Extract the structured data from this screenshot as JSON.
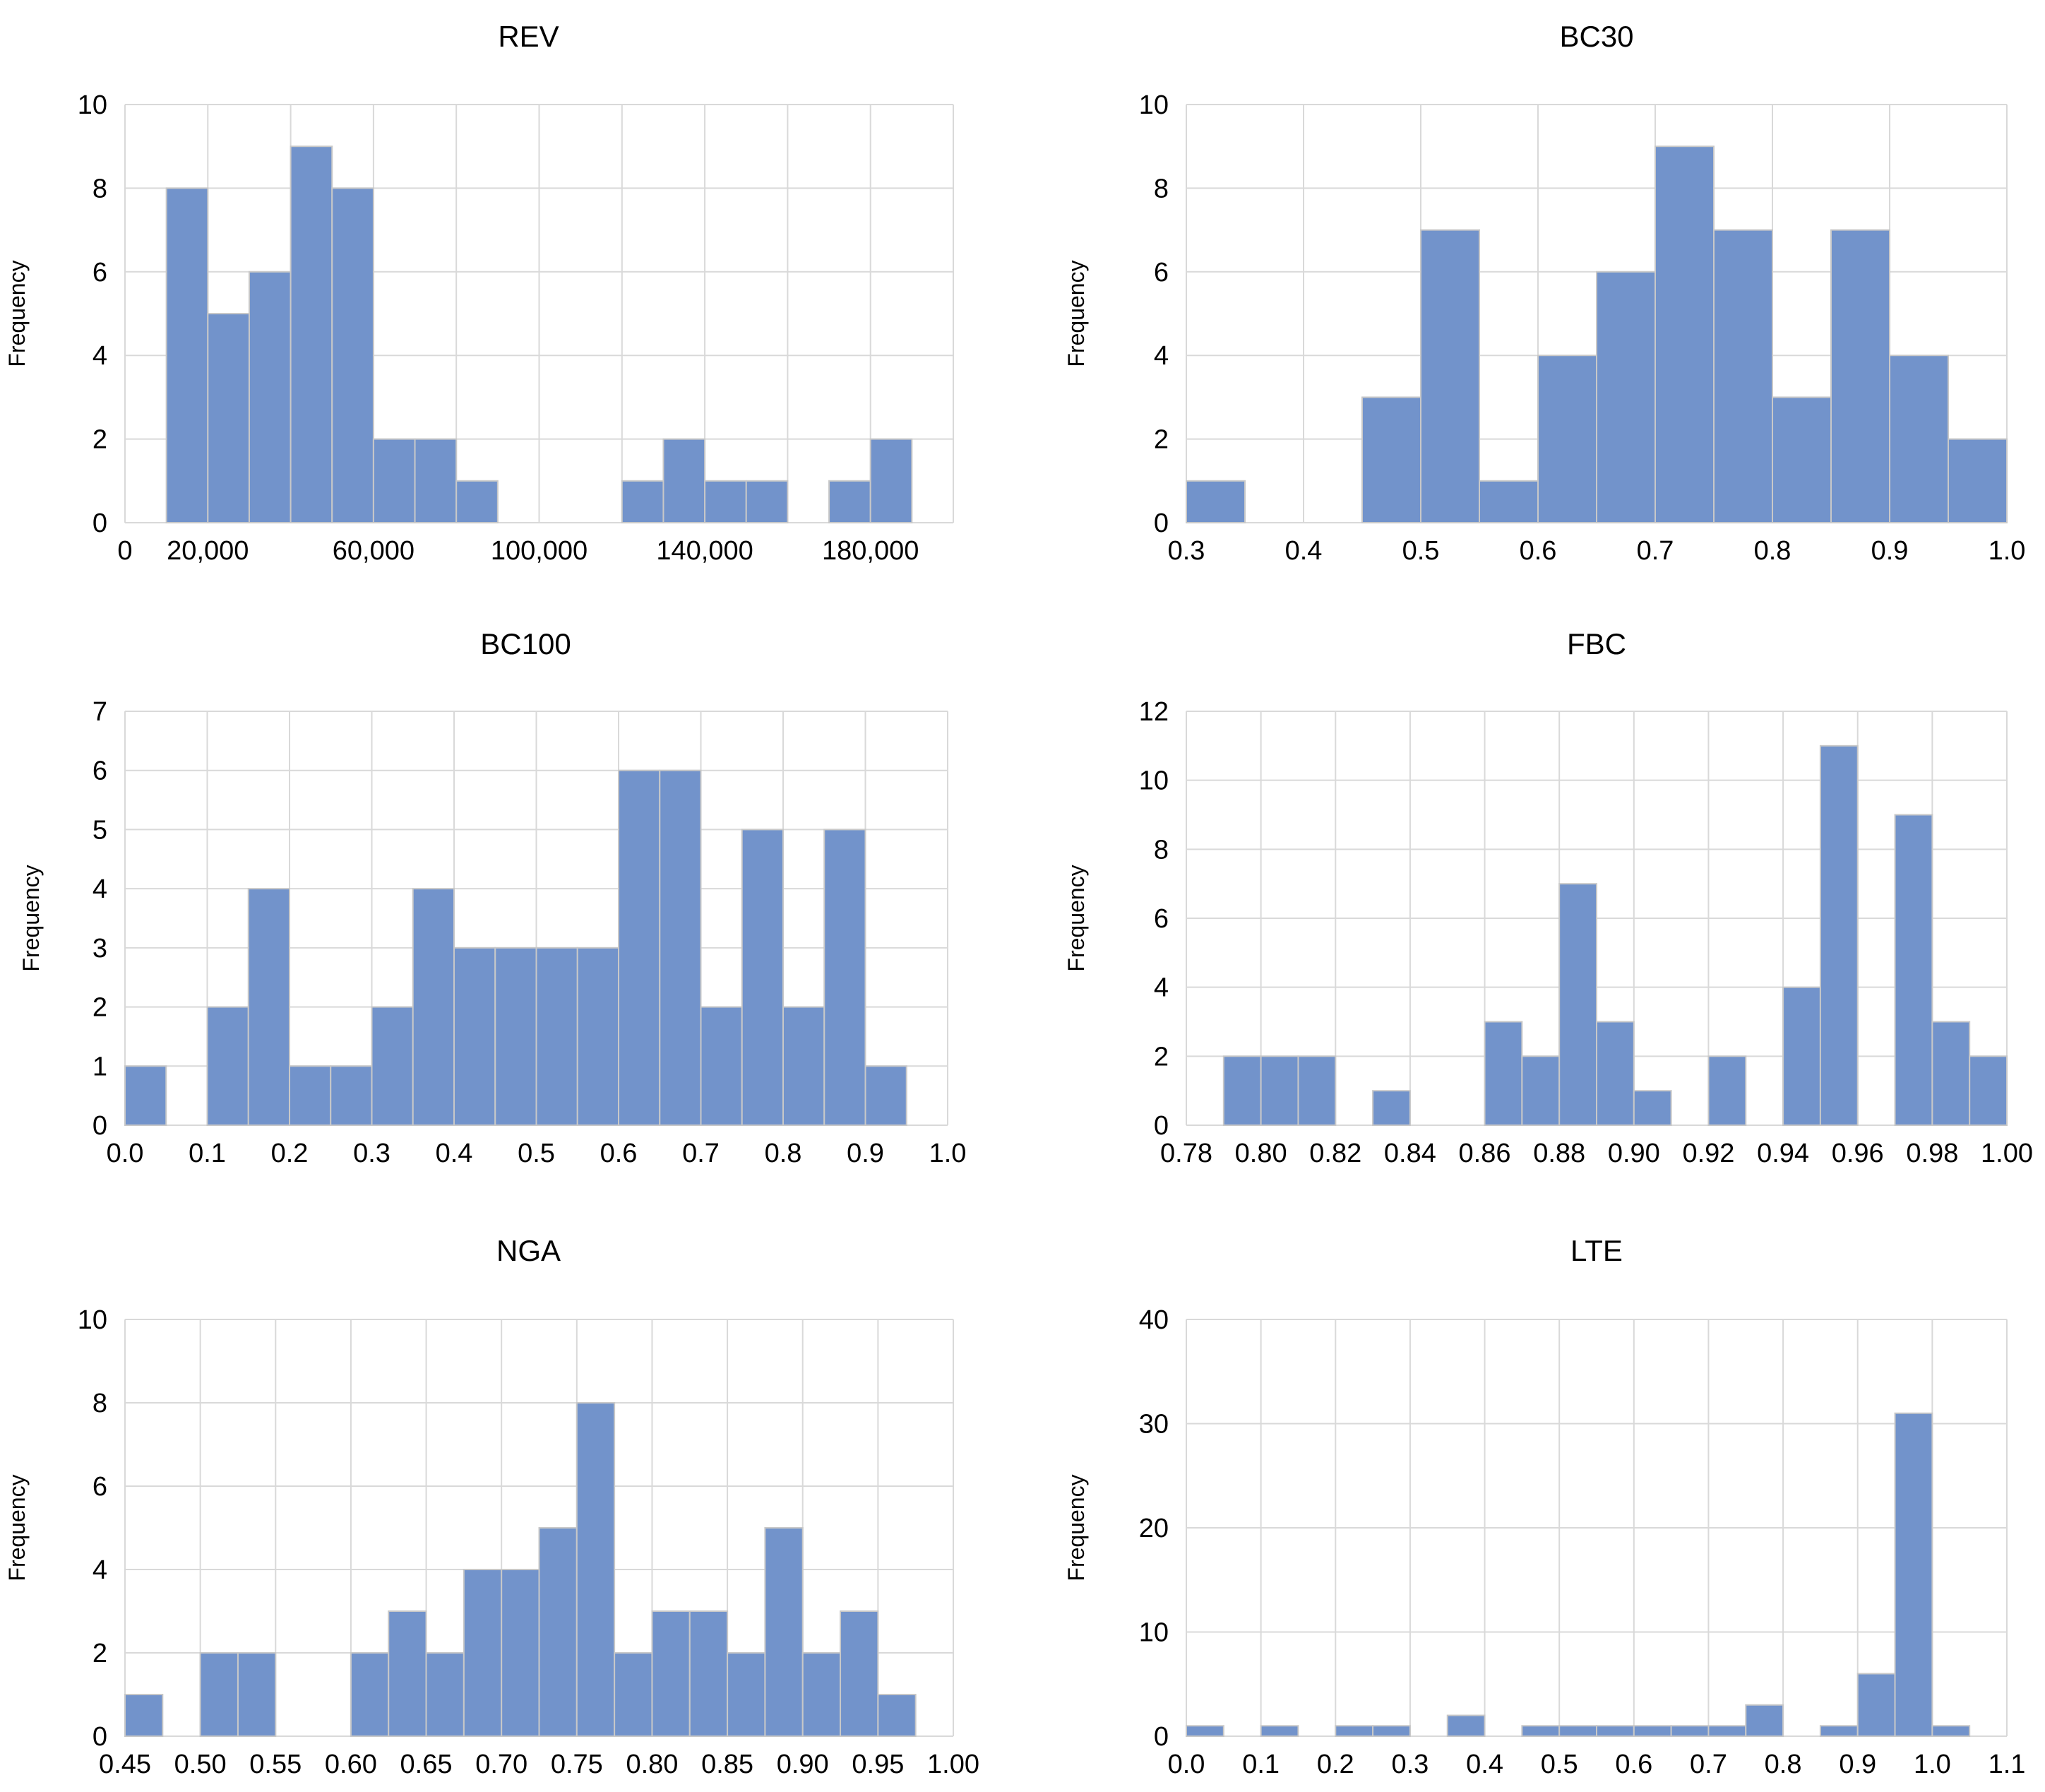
{
  "chart_data": [
    {
      "type": "bar",
      "title": "REV",
      "ylabel": "Frequency",
      "xlabel": "",
      "xlim": [
        0,
        200000
      ],
      "ylim": [
        0,
        10
      ],
      "yticks": [
        0,
        2,
        4,
        6,
        8,
        10
      ],
      "xticks": [
        {
          "value": 0,
          "label": "0"
        },
        {
          "value": 20000,
          "label": "20,000"
        },
        {
          "value": 60000,
          "label": "60,000"
        },
        {
          "value": 100000,
          "label": "100,000"
        },
        {
          "value": 140000,
          "label": "140,000"
        },
        {
          "value": 180000,
          "label": "180,000"
        }
      ],
      "xgrid": [
        0,
        20000,
        40000,
        60000,
        80000,
        100000,
        120000,
        140000,
        160000,
        180000,
        200000
      ],
      "bin_start": 10000,
      "bin_width": 10000,
      "values": [
        8,
        5,
        6,
        9,
        8,
        2,
        2,
        1,
        0,
        0,
        0,
        1,
        2,
        1,
        1,
        0,
        1,
        2
      ]
    },
    {
      "type": "bar",
      "title": "BC30",
      "ylabel": "Frequency",
      "xlabel": "",
      "xlim": [
        0.3,
        1.0
      ],
      "ylim": [
        0,
        10
      ],
      "yticks": [
        0,
        2,
        4,
        6,
        8,
        10
      ],
      "xticks": [
        {
          "value": 0.3,
          "label": "0.3"
        },
        {
          "value": 0.4,
          "label": "0.4"
        },
        {
          "value": 0.5,
          "label": "0.5"
        },
        {
          "value": 0.6,
          "label": "0.6"
        },
        {
          "value": 0.7,
          "label": "0.7"
        },
        {
          "value": 0.8,
          "label": "0.8"
        },
        {
          "value": 0.9,
          "label": "0.9"
        },
        {
          "value": 1.0,
          "label": "1.0"
        }
      ],
      "xgrid": [
        0.3,
        0.4,
        0.5,
        0.6,
        0.7,
        0.8,
        0.9,
        1.0
      ],
      "bin_start": 0.3,
      "bin_width": 0.05,
      "values": [
        1,
        0,
        0,
        3,
        7,
        1,
        4,
        6,
        9,
        7,
        3,
        7,
        4,
        2
      ]
    },
    {
      "type": "bar",
      "title": "BC100",
      "ylabel": "Frequency",
      "xlabel": "",
      "xlim": [
        0.0,
        1.0
      ],
      "ylim": [
        0,
        7
      ],
      "yticks": [
        0,
        1,
        2,
        3,
        4,
        5,
        6,
        7
      ],
      "xticks": [
        {
          "value": 0.0,
          "label": "0.0"
        },
        {
          "value": 0.1,
          "label": "0.1"
        },
        {
          "value": 0.2,
          "label": "0.2"
        },
        {
          "value": 0.3,
          "label": "0.3"
        },
        {
          "value": 0.4,
          "label": "0.4"
        },
        {
          "value": 0.5,
          "label": "0.5"
        },
        {
          "value": 0.6,
          "label": "0.6"
        },
        {
          "value": 0.7,
          "label": "0.7"
        },
        {
          "value": 0.8,
          "label": "0.8"
        },
        {
          "value": 0.9,
          "label": "0.9"
        },
        {
          "value": 1.0,
          "label": "1.0"
        }
      ],
      "xgrid": [
        0.0,
        0.1,
        0.2,
        0.3,
        0.4,
        0.5,
        0.6,
        0.7,
        0.8,
        0.9,
        1.0
      ],
      "bin_start": 0.0,
      "bin_width": 0.05,
      "values": [
        1,
        0,
        2,
        4,
        1,
        1,
        2,
        4,
        3,
        3,
        3,
        3,
        6,
        6,
        2,
        5,
        2,
        5,
        1
      ]
    },
    {
      "type": "bar",
      "title": "FBC",
      "ylabel": "Frequency",
      "xlabel": "",
      "xlim": [
        0.78,
        1.0
      ],
      "ylim": [
        0,
        12
      ],
      "yticks": [
        0,
        2,
        4,
        6,
        8,
        10,
        12
      ],
      "xticks": [
        {
          "value": 0.78,
          "label": "0.78"
        },
        {
          "value": 0.8,
          "label": "0.80"
        },
        {
          "value": 0.82,
          "label": "0.82"
        },
        {
          "value": 0.84,
          "label": "0.84"
        },
        {
          "value": 0.86,
          "label": "0.86"
        },
        {
          "value": 0.88,
          "label": "0.88"
        },
        {
          "value": 0.9,
          "label": "0.90"
        },
        {
          "value": 0.92,
          "label": "0.92"
        },
        {
          "value": 0.94,
          "label": "0.94"
        },
        {
          "value": 0.96,
          "label": "0.96"
        },
        {
          "value": 0.98,
          "label": "0.98"
        },
        {
          "value": 1.0,
          "label": "1.00"
        }
      ],
      "xgrid": [
        0.78,
        0.8,
        0.82,
        0.84,
        0.86,
        0.88,
        0.9,
        0.92,
        0.94,
        0.96,
        0.98,
        1.0
      ],
      "bin_start": 0.79,
      "bin_width": 0.01,
      "values": [
        2,
        2,
        2,
        0,
        1,
        0,
        0,
        3,
        2,
        7,
        3,
        1,
        0,
        2,
        0,
        4,
        11,
        0,
        9,
        3,
        2
      ]
    },
    {
      "type": "bar",
      "title": "NGA",
      "ylabel": "Frequency",
      "xlabel": "",
      "xlim": [
        0.45,
        1.0
      ],
      "ylim": [
        0,
        10
      ],
      "yticks": [
        0,
        2,
        4,
        6,
        8,
        10
      ],
      "xticks": [
        {
          "value": 0.45,
          "label": "0.45"
        },
        {
          "value": 0.5,
          "label": "0.50"
        },
        {
          "value": 0.55,
          "label": "0.55"
        },
        {
          "value": 0.6,
          "label": "0.60"
        },
        {
          "value": 0.65,
          "label": "0.65"
        },
        {
          "value": 0.7,
          "label": "0.70"
        },
        {
          "value": 0.75,
          "label": "0.75"
        },
        {
          "value": 0.8,
          "label": "0.80"
        },
        {
          "value": 0.85,
          "label": "0.85"
        },
        {
          "value": 0.9,
          "label": "0.90"
        },
        {
          "value": 0.95,
          "label": "0.95"
        },
        {
          "value": 1.0,
          "label": "1.00"
        }
      ],
      "xgrid": [
        0.45,
        0.5,
        0.55,
        0.6,
        0.65,
        0.7,
        0.75,
        0.8,
        0.85,
        0.9,
        0.95,
        1.0
      ],
      "bin_start": 0.45,
      "bin_width": 0.025,
      "values": [
        1,
        0,
        2,
        2,
        0,
        0,
        2,
        3,
        2,
        4,
        4,
        5,
        8,
        2,
        3,
        3,
        2,
        5,
        2,
        3,
        1
      ]
    },
    {
      "type": "bar",
      "title": "LTE",
      "ylabel": "Frequency",
      "xlabel": "",
      "xlim": [
        0.0,
        1.1
      ],
      "ylim": [
        0,
        40
      ],
      "yticks": [
        0,
        10,
        20,
        30,
        40
      ],
      "xticks": [
        {
          "value": 0.0,
          "label": "0.0"
        },
        {
          "value": 0.1,
          "label": "0.1"
        },
        {
          "value": 0.2,
          "label": "0.2"
        },
        {
          "value": 0.3,
          "label": "0.3"
        },
        {
          "value": 0.4,
          "label": "0.4"
        },
        {
          "value": 0.5,
          "label": "0.5"
        },
        {
          "value": 0.6,
          "label": "0.6"
        },
        {
          "value": 0.7,
          "label": "0.7"
        },
        {
          "value": 0.8,
          "label": "0.8"
        },
        {
          "value": 0.9,
          "label": "0.9"
        },
        {
          "value": 1.0,
          "label": "1.0"
        },
        {
          "value": 1.1,
          "label": "1.1"
        }
      ],
      "xgrid": [
        0.0,
        0.1,
        0.2,
        0.3,
        0.4,
        0.5,
        0.6,
        0.7,
        0.8,
        0.9,
        1.0,
        1.1
      ],
      "bin_start": 0.0,
      "bin_width": 0.05,
      "values": [
        1,
        0,
        1,
        0,
        1,
        1,
        0,
        2,
        0,
        1,
        1,
        1,
        1,
        1,
        1,
        3,
        0,
        1,
        6,
        31,
        1
      ]
    }
  ]
}
